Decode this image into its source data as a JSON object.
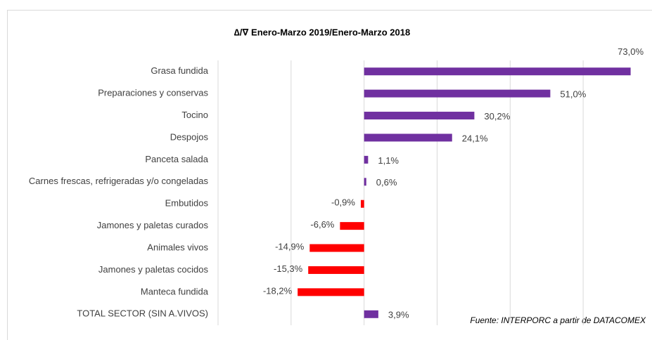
{
  "chart_data": {
    "type": "hbar",
    "title": "∆/∇  Enero-Marzo 2019/Enero-Marzo 2018",
    "note": "Fuente: INTERPORC  a partir de DATACOMEX",
    "categories": [
      "Grasa fundida",
      "Preparaciones y conservas",
      "Tocino",
      "Despojos",
      "Panceta salada",
      "Carnes frescas, refrigeradas y/o congeladas",
      "Embutidos",
      "Jamones y paletas curados",
      "Animales vivos",
      "Jamones y paletas cocidos",
      "Manteca fundida",
      "TOTAL SECTOR (SIN A.VIVOS)"
    ],
    "values": [
      73.0,
      51.0,
      30.2,
      24.1,
      1.1,
      0.6,
      -0.9,
      -6.6,
      -14.9,
      -15.3,
      -18.2,
      3.9
    ],
    "value_labels": [
      "73,0%",
      "51,0%",
      "30,2%",
      "24,1%",
      "1,1%",
      "0,6%",
      "-0,9%",
      "-6,6%",
      "-14,9%",
      "-15,3%",
      "-18,2%",
      "3,9%"
    ],
    "color": "#7030a0",
    "negative_color": "#ff0000",
    "xlim": [
      -40,
      75
    ],
    "xticks": [
      -40,
      -20,
      0,
      20,
      40,
      60
    ],
    "grid": true
  }
}
